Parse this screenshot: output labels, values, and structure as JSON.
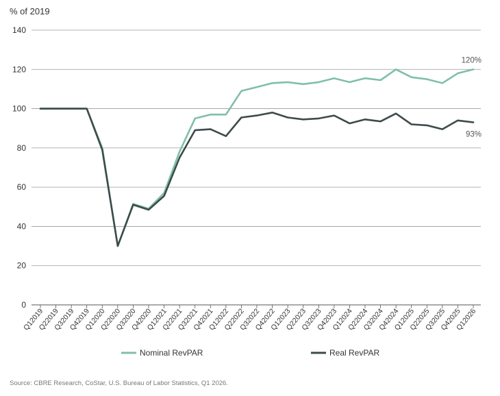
{
  "chart_data": {
    "type": "line",
    "unit_label": "% of 2019",
    "categories": [
      "Q1 2019",
      "Q2 2019",
      "Q3 2019",
      "Q4 2019",
      "Q1 2020",
      "Q2 2020",
      "Q3 2020",
      "Q4 2020",
      "Q1 2021",
      "Q2 2021",
      "Q3 2021",
      "Q4 2021",
      "Q1 2022",
      "Q2 2022",
      "Q3 2022",
      "Q4 2022",
      "Q1 2023",
      "Q2 2023",
      "Q3 2023",
      "Q4 2023",
      "Q1 2024",
      "Q2 2024",
      "Q3 2024",
      "Q4 2024",
      "Q1 2025",
      "Q2 2025",
      "Q3 2025",
      "Q4 2025",
      "Q1 2026"
    ],
    "ylim": [
      0,
      140
    ],
    "yticks": [
      0,
      20,
      40,
      60,
      80,
      100,
      120,
      140
    ],
    "grid": true,
    "legend_position": "bottom",
    "series": [
      {
        "name": "Nominal RevPAR",
        "color": "#7fbfa8",
        "values": [
          100,
          100,
          100,
          100,
          80,
          30,
          51.5,
          49,
          57,
          78,
          95,
          97,
          97,
          109,
          111,
          113,
          113.5,
          112.5,
          113.5,
          115.5,
          113.5,
          115.5,
          114.5,
          120,
          116,
          115,
          113,
          118,
          120
        ],
        "end_label": "120%"
      },
      {
        "name": "Real RevPAR",
        "color": "#3d4a4b",
        "values": [
          100,
          100,
          100,
          100,
          79,
          30,
          51,
          48.5,
          55.5,
          75,
          89,
          89.5,
          86,
          95.5,
          96.5,
          98,
          95.5,
          94.5,
          95,
          96.5,
          92.5,
          94.5,
          93.5,
          97.5,
          92,
          91.5,
          89.5,
          94,
          93
        ],
        "end_label": "93%"
      }
    ],
    "source": "Source: CBRE Research, CoStar, U.S. Bureau of Labor Statistics, Q1 2026."
  }
}
